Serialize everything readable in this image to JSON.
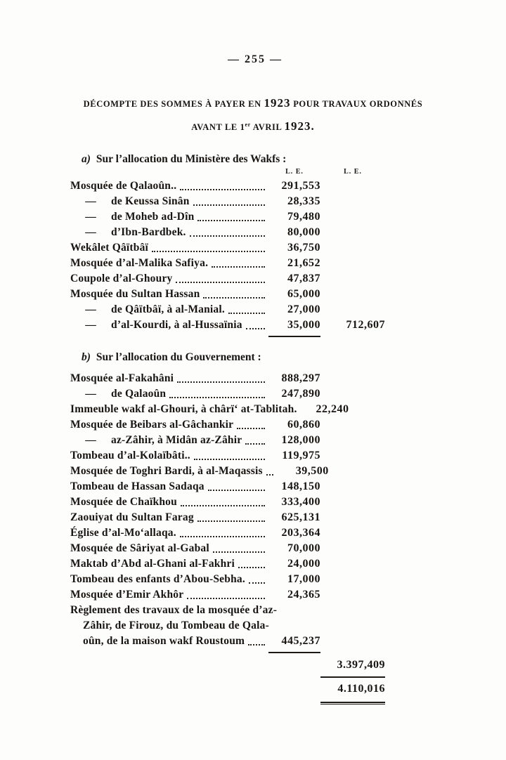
{
  "page_number": "— 255 —",
  "heading": {
    "line1_prefix": "DÉCOMPTE DES SOMMES À PAYER EN ",
    "line1_year": "1923",
    "line1_suffix": " POUR TRAVAUX ORDONNÉS",
    "line2_prefix": "AVANT LE 1",
    "line2_sup": "er",
    "line2_mid": " AVRIL ",
    "line2_year": "1923."
  },
  "sections": [
    {
      "label_letter": "a)",
      "label_text": "Sur l’allocation du Ministère des Wakfs :",
      "col_headers": [
        "L. E.",
        "L. E."
      ],
      "rows": [
        {
          "name": "Mosquée de Qalaoûn..",
          "dots": true,
          "amount1": "291,553"
        },
        {
          "dash": "—",
          "name": "de Keussa Sinân",
          "dots": true,
          "amount1": "28,335"
        },
        {
          "dash": "—",
          "name": "de Moheb ad-Dîn",
          "dots": true,
          "amount1": "79,480"
        },
        {
          "dash": "—",
          "name": "d’Ibn-Bardbek.",
          "dots": true,
          "amount1": "80,000"
        },
        {
          "name": "Wekâlet Qâïtbâï",
          "dots": true,
          "amount1": "36,750"
        },
        {
          "name": "Mosquée d’al-Malika Safiya.",
          "dots": true,
          "amount1": "21,652"
        },
        {
          "name": "Coupole d’al-Ghoury",
          "dots": true,
          "amount1": "47,837"
        },
        {
          "name": "Mosquée du Sultan Hassan",
          "dots": true,
          "amount1": "65,000"
        },
        {
          "dash": "—",
          "name": "de Qâïtbâï, à al-Manial.",
          "dots": true,
          "amount1": "27,000"
        },
        {
          "dash": "—",
          "name": "d’al-Kourdi, à al-Hussaïnia",
          "dots": true,
          "amount1": "35,000",
          "amount2": "712,607"
        },
        {
          "rule": "col1"
        }
      ]
    },
    {
      "label_letter": "b)",
      "label_text": "Sur l’allocation du Gouvernement :",
      "col_headers": [],
      "rows": [
        {
          "name": "Mosquée al-Fakahâni",
          "dots": true,
          "amount1": "888,297"
        },
        {
          "dash": "—",
          "name": "de Qalaoûn",
          "dots": true,
          "amount1": "247,890"
        },
        {
          "name": "Immeuble wakf al-Ghouri, à chârï‘ at-Tablitah.",
          "dots": false,
          "amount1": "22,240"
        },
        {
          "name": "Mosquée de Beibars al-Gâchankir",
          "dots": true,
          "amount1": "60,860"
        },
        {
          "dash": "—",
          "name": "az-Zâhir, à Midân az-Zâhir",
          "dots": true,
          "amount1": "128,000"
        },
        {
          "name": "Tombeau d’al-Kolaïbâti..",
          "dots": true,
          "amount1": "119,975"
        },
        {
          "name": "Mosquée de Toghri Bardi, à al-Maqassis",
          "dots": true,
          "amount1": "39,500"
        },
        {
          "name": "Tombeau de Hassan Sadaqa",
          "dots": true,
          "amount1": "148,150"
        },
        {
          "name": "Mosquée de Chaïkhou",
          "dots": true,
          "amount1": "333,400"
        },
        {
          "name": "Zaouiyat du Sultan Farag",
          "dots": true,
          "amount1": "625,131"
        },
        {
          "name": "Église d’al-Mo‘allaqa.",
          "dots": true,
          "amount1": "203,364"
        },
        {
          "name": "Mosquée de Sâriyat al-Gabal",
          "dots": true,
          "amount1": "70,000"
        },
        {
          "name": "Maktab d’Abd al-Ghani al-Fakhri",
          "dots": true,
          "amount1": "24,000"
        },
        {
          "name": "Tombeau des enfants d’Abou-Sebha.",
          "dots": true,
          "amount1": "17,000"
        },
        {
          "name": "Mosquée d’Emir Akhôr",
          "dots": true,
          "amount1": "24,365"
        },
        {
          "name": "Règlement des travaux de la mosquée d’az-",
          "dots": false
        },
        {
          "name": "Zâhir, de Firouz, du Tombeau de Qala-",
          "indent": true,
          "dots": false
        },
        {
          "name": "oûn, de la maison wakf Roustoum",
          "indent": true,
          "dots": true,
          "amount1": "445,237"
        },
        {
          "rule": "col1"
        }
      ]
    }
  ],
  "totals": {
    "subtotal": "3.397,409",
    "grand_total": "4.110,016"
  }
}
